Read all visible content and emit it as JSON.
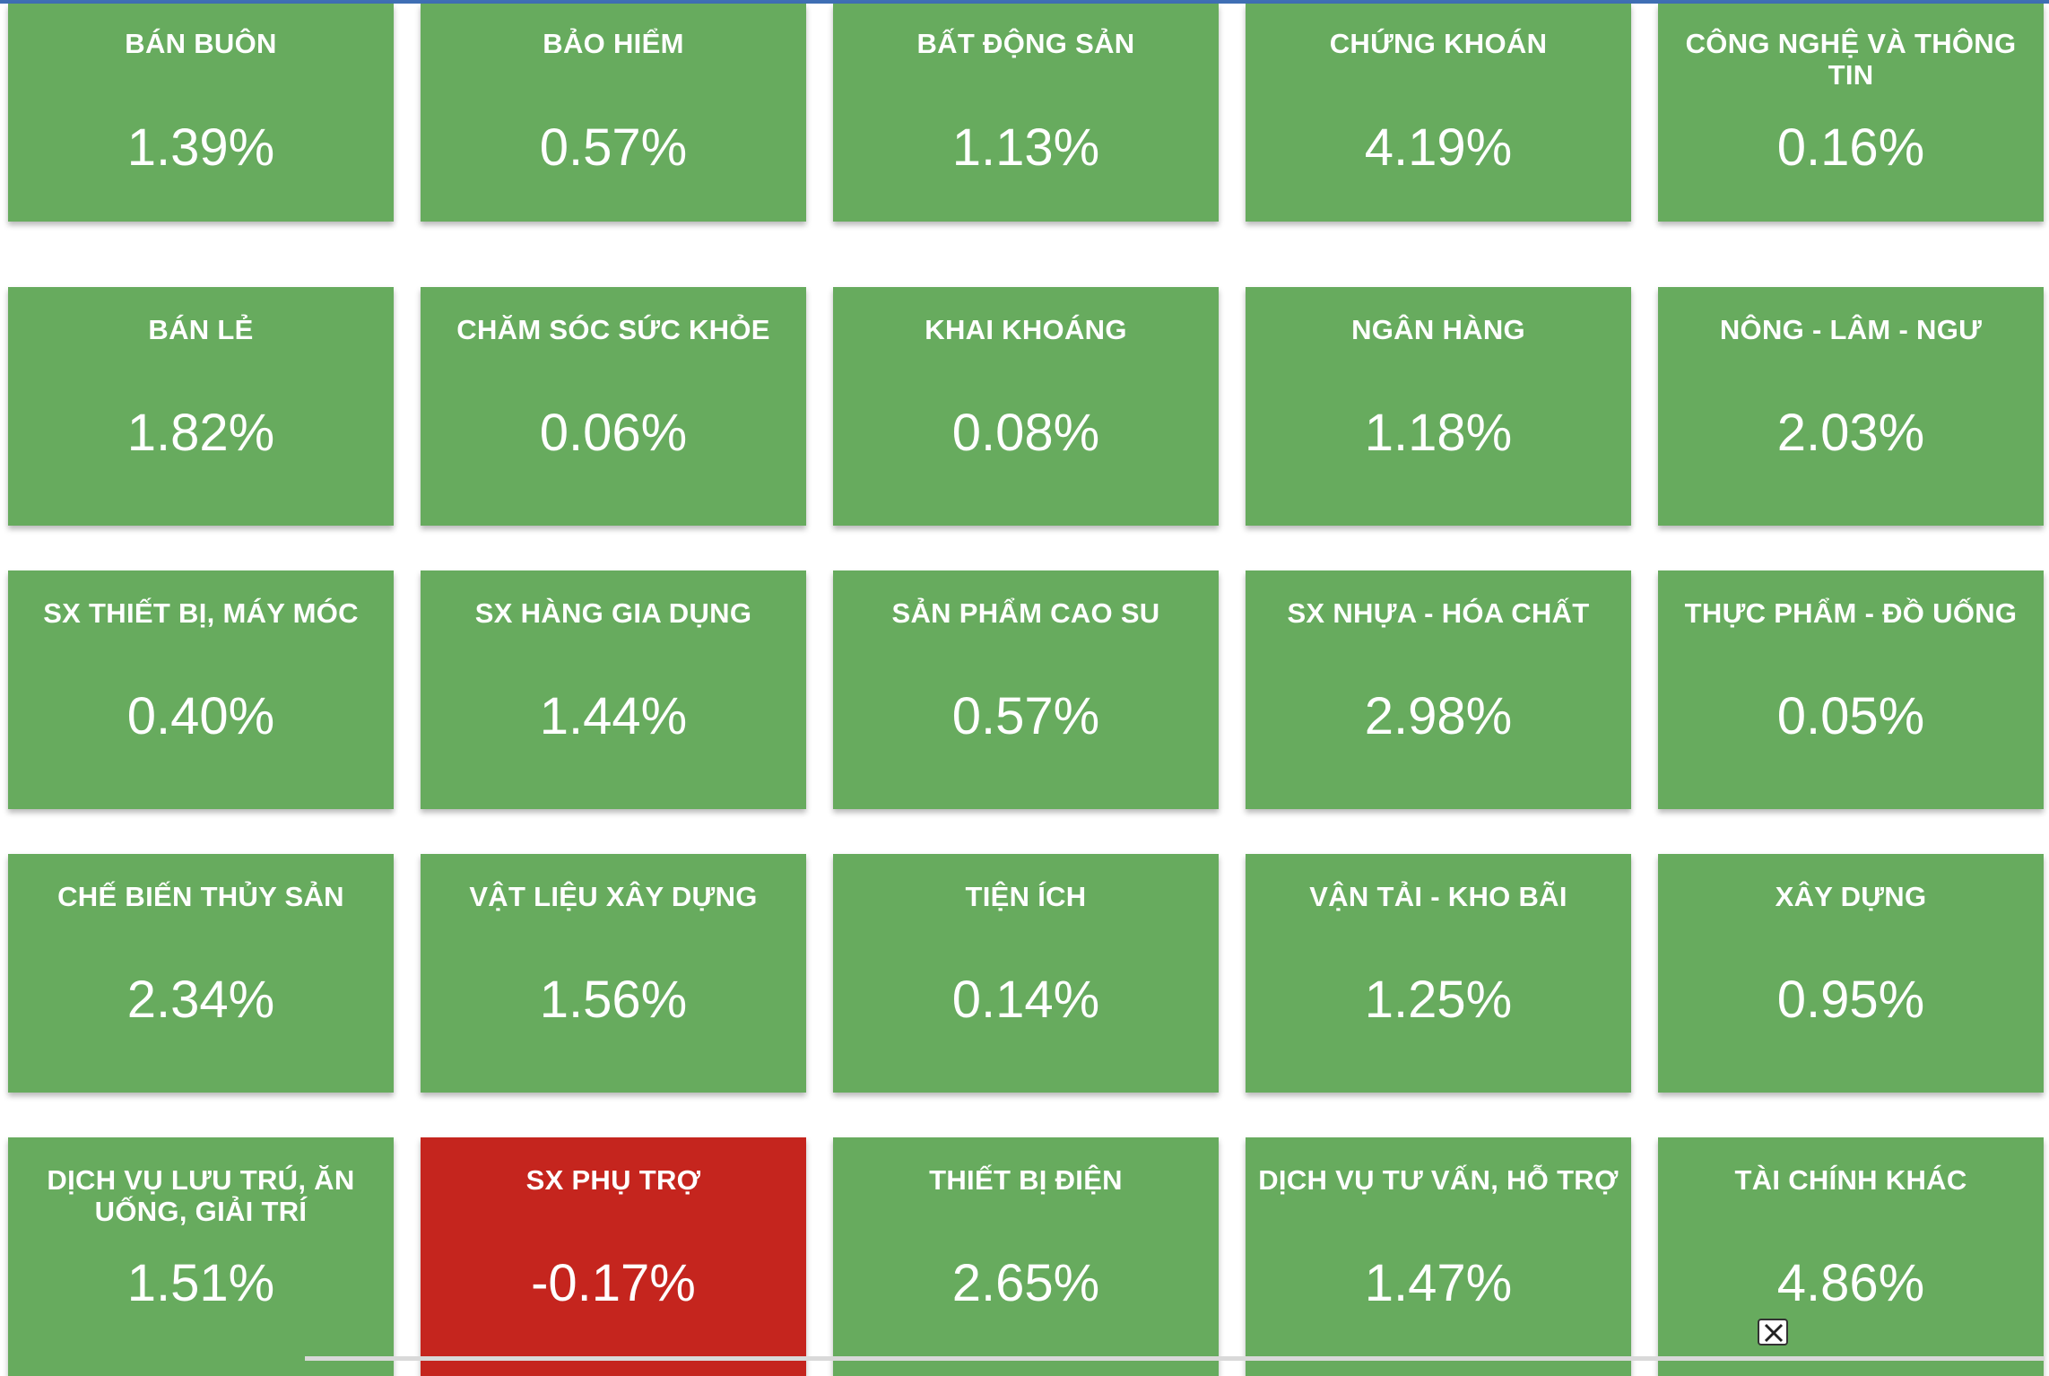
{
  "sectors": [
    {
      "name": "BÁN BUÔN",
      "value": "1.39%",
      "status": "up"
    },
    {
      "name": "BẢO HIỂM",
      "value": "0.57%",
      "status": "up"
    },
    {
      "name": "BẤT ĐỘNG SẢN",
      "value": "1.13%",
      "status": "up"
    },
    {
      "name": "CHỨNG KHOÁN",
      "value": "4.19%",
      "status": "up"
    },
    {
      "name": "CÔNG NGHỆ VÀ THÔNG TIN",
      "value": "0.16%",
      "status": "up"
    },
    {
      "name": "BÁN LẺ",
      "value": "1.82%",
      "status": "up"
    },
    {
      "name": "CHĂM SÓC SỨC KHỎE",
      "value": "0.06%",
      "status": "up"
    },
    {
      "name": "KHAI KHOÁNG",
      "value": "0.08%",
      "status": "up"
    },
    {
      "name": "NGÂN HÀNG",
      "value": "1.18%",
      "status": "up"
    },
    {
      "name": "NÔNG - LÂM - NGƯ",
      "value": "2.03%",
      "status": "up"
    },
    {
      "name": "SX THIẾT BỊ, MÁY MÓC",
      "value": "0.40%",
      "status": "up"
    },
    {
      "name": "SX HÀNG GIA DỤNG",
      "value": "1.44%",
      "status": "up"
    },
    {
      "name": "SẢN PHẨM CAO SU",
      "value": "0.57%",
      "status": "up"
    },
    {
      "name": "SX NHỰA - HÓA CHẤT",
      "value": "2.98%",
      "status": "up"
    },
    {
      "name": "THỰC PHẨM - ĐỒ UỐNG",
      "value": "0.05%",
      "status": "up"
    },
    {
      "name": "CHẾ BIẾN THỦY SẢN",
      "value": "2.34%",
      "status": "up"
    },
    {
      "name": "VẬT LIỆU XÂY DỰNG",
      "value": "1.56%",
      "status": "up"
    },
    {
      "name": "TIỆN ÍCH",
      "value": "0.14%",
      "status": "up"
    },
    {
      "name": "VẬN TẢI - KHO BÃI",
      "value": "1.25%",
      "status": "up"
    },
    {
      "name": "XÂY DỰNG",
      "value": "0.95%",
      "status": "up"
    },
    {
      "name": "DỊCH VỤ LƯU TRÚ, ĂN UỐNG, GIẢI TRÍ",
      "value": "1.51%",
      "status": "up"
    },
    {
      "name": "SX PHỤ TRỢ",
      "value": "-0.17%",
      "status": "down"
    },
    {
      "name": "THIẾT BỊ ĐIỆN",
      "value": "2.65%",
      "status": "up"
    },
    {
      "name": "DỊCH VỤ TƯ VẤN, HỖ TRỢ",
      "value": "1.47%",
      "status": "up"
    },
    {
      "name": "TÀI CHÍNH KHÁC",
      "value": "4.86%",
      "status": "up"
    }
  ],
  "colors": {
    "up": "#67ab5e",
    "down": "#c5251e",
    "text": "#ffffff"
  },
  "icons": {
    "close": "close-icon"
  }
}
